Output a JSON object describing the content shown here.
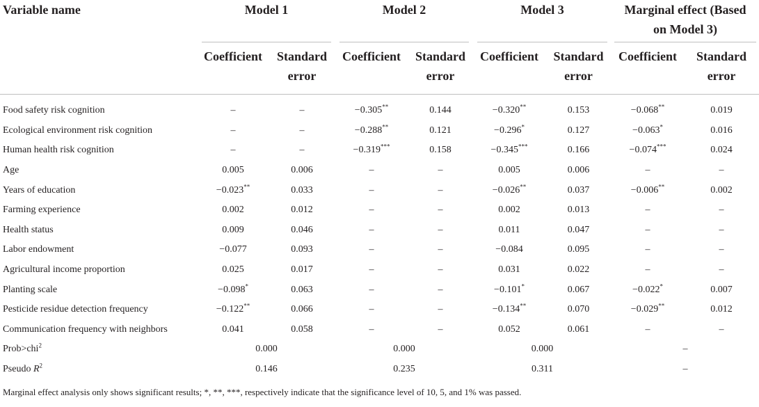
{
  "header": {
    "variable_name": "Variable name",
    "model1": "Model 1",
    "model2": "Model 2",
    "model3": "Model 3",
    "marginal_line1": "Marginal effect (Based",
    "marginal_line2": "on Model 3)",
    "coef": "Coefficient",
    "se_line1": "Standard",
    "se_line2": "error"
  },
  "rows": [
    {
      "name": "Food safety risk cognition",
      "cells": [
        "–",
        "–",
        "−0.305**",
        "0.144",
        "−0.320**",
        "0.153",
        "−0.068**",
        "0.019"
      ]
    },
    {
      "name": "Ecological environment risk cognition",
      "cells": [
        "–",
        "–",
        "−0.288**",
        "0.121",
        "−0.296*",
        "0.127",
        "−0.063*",
        "0.016"
      ]
    },
    {
      "name": "Human health risk cognition",
      "cells": [
        "–",
        "–",
        "−0.319***",
        "0.158",
        "−0.345***",
        "0.166",
        "−0.074***",
        "0.024"
      ]
    },
    {
      "name": "Age",
      "cells": [
        "0.005",
        "0.006",
        "–",
        "–",
        "0.005",
        "0.006",
        "–",
        "–"
      ]
    },
    {
      "name": "Years of education",
      "cells": [
        "−0.023**",
        "0.033",
        "–",
        "–",
        "−0.026**",
        "0.037",
        "−0.006**",
        "0.002"
      ]
    },
    {
      "name": "Farming experience",
      "cells": [
        "0.002",
        "0.012",
        "–",
        "–",
        "0.002",
        "0.013",
        "–",
        "–"
      ]
    },
    {
      "name": "Health status",
      "cells": [
        "0.009",
        "0.046",
        "–",
        "–",
        "0.011",
        "0.047",
        "–",
        "–"
      ]
    },
    {
      "name": "Labor endowment",
      "cells": [
        "−0.077",
        "0.093",
        "–",
        "–",
        "−0.084",
        "0.095",
        "–",
        "–"
      ]
    },
    {
      "name": "Agricultural income proportion",
      "cells": [
        "0.025",
        "0.017",
        "–",
        "–",
        "0.031",
        "0.022",
        "–",
        "–"
      ]
    },
    {
      "name": "Planting scale",
      "cells": [
        "−0.098*",
        "0.063",
        "–",
        "–",
        "−0.101*",
        "0.067",
        "−0.022*",
        "0.007"
      ]
    },
    {
      "name": "Pesticide residue detection frequency",
      "cells": [
        "−0.122**",
        "0.066",
        "–",
        "–",
        "−0.134**",
        "0.070",
        "−0.029**",
        "0.012"
      ]
    },
    {
      "name": "Communication frequency with neighbors",
      "cells": [
        "0.041",
        "0.058",
        "–",
        "–",
        "0.052",
        "0.061",
        "–",
        "–"
      ]
    }
  ],
  "summary": [
    {
      "name": "Prob>chi",
      "sup": "2",
      "values": [
        "0.000",
        "0.000",
        "0.000",
        "–"
      ]
    },
    {
      "name": "Pseudo ",
      "italic": "R",
      "sup": "2",
      "values": [
        "0.146",
        "0.235",
        "0.311",
        "–"
      ]
    }
  ],
  "footnote": "Marginal effect analysis only shows significant results; *, **, ***, respectively indicate that the significance level of 10, 5, and 1% was passed."
}
